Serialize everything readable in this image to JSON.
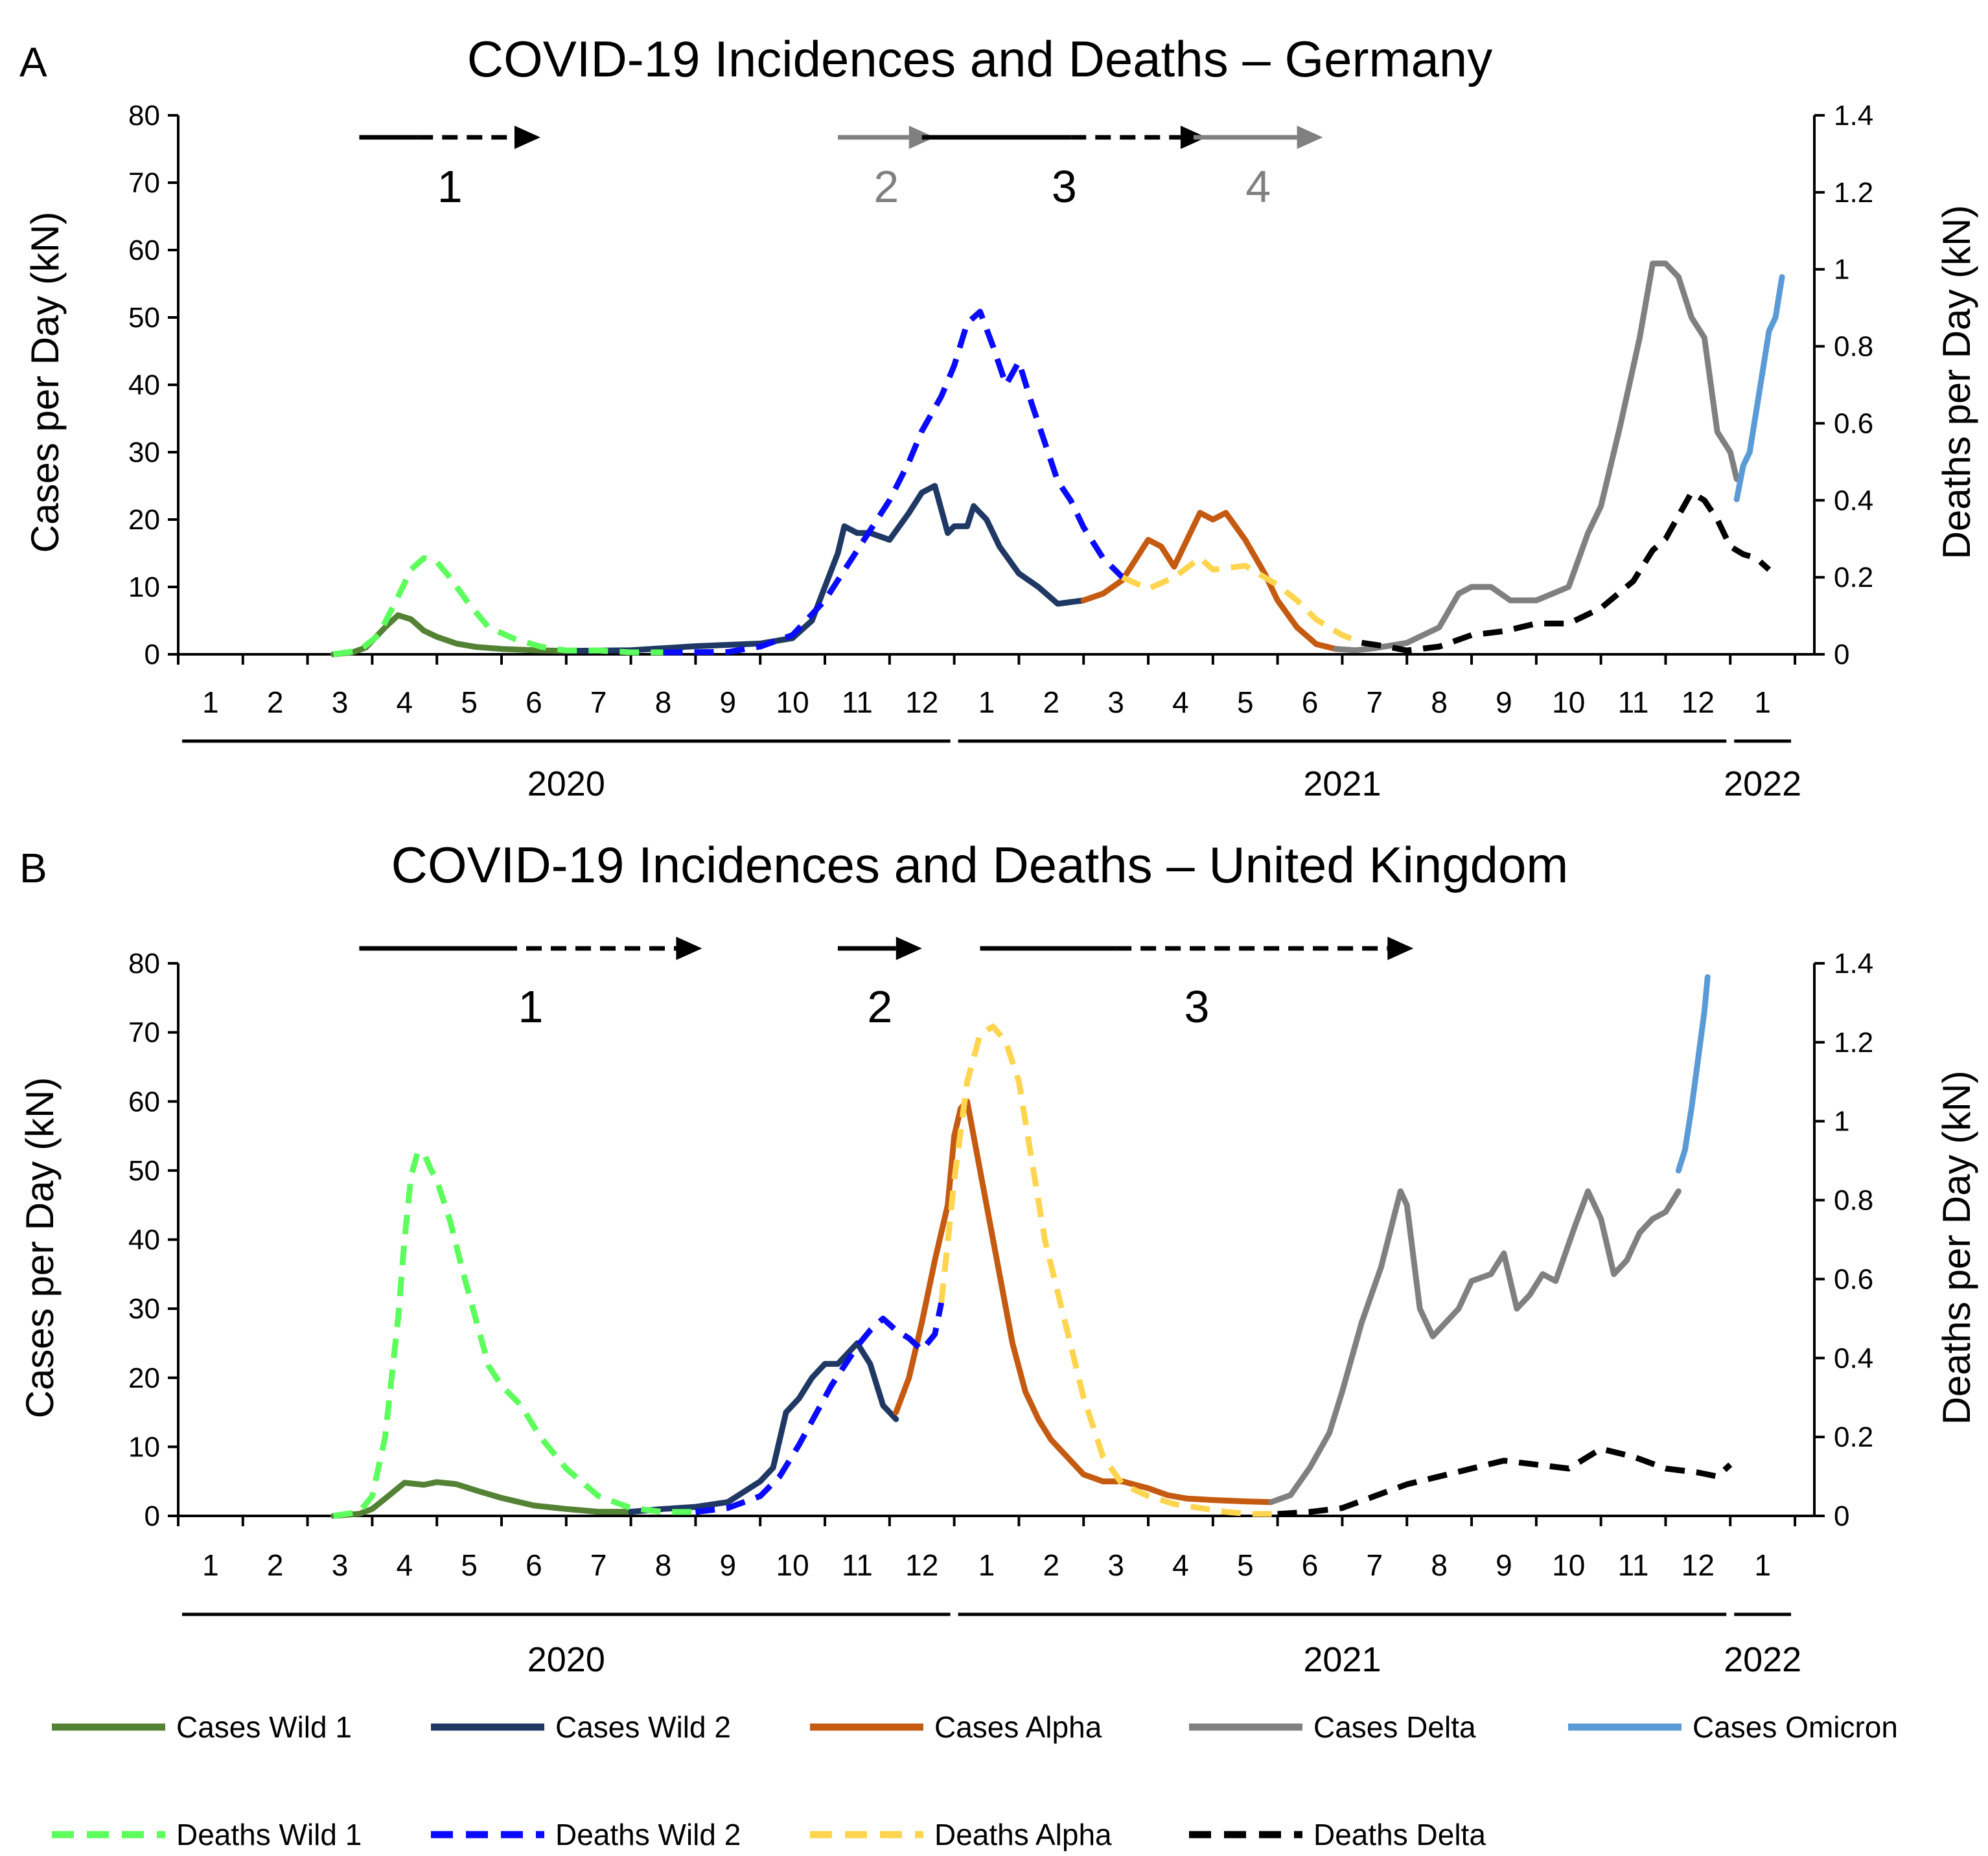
{
  "colors": {
    "cases_wild1": "#548235",
    "cases_wild2": "#1F3864",
    "cases_alpha": "#C55A11",
    "cases_delta": "#808080",
    "cases_omicron": "#5B9BD5",
    "deaths_wild1": "#5CFF5C",
    "deaths_wild2": "#0A0AFF",
    "deaths_alpha": "#FFD54F",
    "deaths_delta": "#000000",
    "phase_black": "#000000",
    "phase_grey": "#808080"
  },
  "legend": [
    {
      "key": "cases_wild1",
      "label": "Cases Wild 1",
      "dashed": false
    },
    {
      "key": "cases_wild2",
      "label": "Cases Wild 2",
      "dashed": false
    },
    {
      "key": "cases_alpha",
      "label": "Cases Alpha",
      "dashed": false
    },
    {
      "key": "cases_delta",
      "label": "Cases Delta",
      "dashed": false
    },
    {
      "key": "cases_omicron",
      "label": "Cases Omicron",
      "dashed": false
    },
    {
      "key": "deaths_wild1",
      "label": "Deaths Wild 1",
      "dashed": true
    },
    {
      "key": "deaths_wild2",
      "label": "Deaths Wild 2",
      "dashed": true
    },
    {
      "key": "deaths_alpha",
      "label": "Deaths Alpha",
      "dashed": true
    },
    {
      "key": "deaths_delta",
      "label": "Deaths Delta",
      "dashed": true
    }
  ],
  "chart_data": [
    {
      "panel": "A",
      "type": "line",
      "title": "COVID-19 Incidences and Deaths – Germany",
      "ylabel": "Cases per Day (kN)",
      "y2label": "Deaths per Day (kN)",
      "ylim": [
        0,
        80
      ],
      "y2lim": [
        0,
        1.4
      ],
      "yticks": [
        "0",
        "10",
        "20",
        "30",
        "40",
        "50",
        "60",
        "70",
        "80"
      ],
      "y2ticks": [
        "0",
        "0.2",
        "0.4",
        "0.6",
        "0.8",
        "1",
        "1.2",
        "1.4"
      ],
      "x_unit": "months since 2020-01-01",
      "xlim": [
        0,
        25
      ],
      "month_labels": [
        "1",
        "2",
        "3",
        "4",
        "5",
        "6",
        "7",
        "8",
        "9",
        "10",
        "11",
        "12",
        "1",
        "2",
        "3",
        "4",
        "5",
        "6",
        "7",
        "8",
        "9",
        "10",
        "11",
        "12",
        "1"
      ],
      "years": [
        {
          "label": "2020",
          "start": 0,
          "end": 12
        },
        {
          "label": "2021",
          "start": 12,
          "end": 24
        },
        {
          "label": "2022",
          "start": 24,
          "end": 25
        }
      ],
      "phases": [
        {
          "label": "1",
          "start": 2.8,
          "mid": 3.7,
          "end": 5.2,
          "color": "phase_black"
        },
        {
          "label": "2",
          "start": 10.2,
          "mid": 11.3,
          "end": 11.3,
          "color": "phase_grey"
        },
        {
          "label": "3",
          "start": 11.5,
          "mid": 13.8,
          "end": 15.5,
          "color": "phase_black"
        },
        {
          "label": "4",
          "start": 15.7,
          "mid": 17.3,
          "end": 17.3,
          "color": "phase_grey"
        }
      ],
      "series": [
        {
          "name": "Cases Wild 1",
          "key": "cases_wild1",
          "axis": "left",
          "dashed": false,
          "x": [
            2.4,
            2.7,
            2.9,
            3.0,
            3.2,
            3.4,
            3.6,
            3.8,
            4.0,
            4.3,
            4.6,
            5.0,
            5.5,
            6.0
          ],
          "y": [
            0,
            0.3,
            1,
            2,
            4,
            5.8,
            5.2,
            3.5,
            2.6,
            1.6,
            1.1,
            0.8,
            0.6,
            0.5
          ]
        },
        {
          "name": "Cases Wild 2",
          "key": "cases_wild2",
          "axis": "left",
          "dashed": false,
          "x": [
            6.0,
            7.0,
            8.0,
            9.0,
            9.5,
            9.8,
            10.0,
            10.2,
            10.3,
            10.5,
            10.7,
            11.0,
            11.3,
            11.5,
            11.7,
            11.9,
            12.0,
            12.2,
            12.3,
            12.5,
            12.7,
            13.0,
            13.3,
            13.6,
            14.0
          ],
          "y": [
            0.5,
            0.6,
            1.2,
            1.6,
            2.4,
            5,
            10,
            15,
            19,
            18,
            18,
            17,
            21,
            24,
            25,
            18,
            19,
            19,
            22,
            20,
            16,
            12,
            10,
            7.5,
            8
          ]
        },
        {
          "name": "Cases Alpha",
          "key": "cases_alpha",
          "axis": "left",
          "dashed": false,
          "x": [
            14.0,
            14.3,
            14.6,
            14.8,
            15.0,
            15.2,
            15.4,
            15.6,
            15.8,
            16.0,
            16.2,
            16.5,
            16.8,
            17.0,
            17.3,
            17.6,
            17.9
          ],
          "y": [
            8,
            9,
            11,
            14,
            17,
            16,
            13,
            17,
            21,
            20,
            21,
            17,
            12,
            8,
            4,
            1.5,
            0.8
          ]
        },
        {
          "name": "Cases Delta",
          "key": "cases_delta",
          "axis": "left",
          "dashed": false,
          "x": [
            17.9,
            18.2,
            18.5,
            19.0,
            19.5,
            19.8,
            20.0,
            20.3,
            20.6,
            21.0,
            21.5,
            21.8,
            22.0,
            22.3,
            22.6,
            22.8,
            23.0,
            23.2,
            23.4,
            23.6,
            23.8,
            24.0,
            24.1
          ],
          "y": [
            0.8,
            0.6,
            0.9,
            1.7,
            4,
            9,
            10,
            10,
            8,
            8,
            10,
            18,
            22,
            34,
            47,
            58,
            58,
            56,
            50,
            47,
            33,
            30,
            26
          ]
        },
        {
          "name": "Cases Omicron",
          "key": "cases_omicron",
          "axis": "left",
          "dashed": false,
          "x": [
            24.1,
            24.2,
            24.3,
            24.4,
            24.5,
            24.6,
            24.7,
            24.8
          ],
          "y": [
            23,
            28,
            30,
            36,
            42,
            48,
            50,
            56
          ]
        },
        {
          "name": "Deaths Wild 1",
          "key": "deaths_wild1",
          "axis": "right",
          "dashed": true,
          "x": [
            2.4,
            2.8,
            3.1,
            3.4,
            3.6,
            3.8,
            4.0,
            4.2,
            4.5,
            4.8,
            5.2,
            5.6,
            6.0,
            6.5,
            7.0,
            7.5
          ],
          "y": [
            0,
            0.01,
            0.05,
            0.15,
            0.22,
            0.25,
            0.24,
            0.2,
            0.13,
            0.07,
            0.04,
            0.02,
            0.01,
            0.01,
            0.005,
            0.005
          ]
        },
        {
          "name": "Deaths Wild 2",
          "key": "deaths_wild2",
          "axis": "right",
          "dashed": true,
          "x": [
            7.5,
            8.5,
            9.0,
            9.5,
            10.0,
            10.5,
            11.0,
            11.3,
            11.5,
            11.8,
            12.0,
            12.2,
            12.4,
            12.6,
            12.8,
            13.0,
            13.2,
            13.4,
            13.6,
            13.8,
            14.0,
            14.3,
            14.6
          ],
          "y": [
            0.005,
            0.006,
            0.02,
            0.05,
            0.14,
            0.27,
            0.4,
            0.5,
            0.58,
            0.67,
            0.75,
            0.86,
            0.89,
            0.8,
            0.7,
            0.76,
            0.65,
            0.55,
            0.45,
            0.4,
            0.33,
            0.25,
            0.2
          ]
        },
        {
          "name": "Deaths Alpha",
          "key": "deaths_alpha",
          "axis": "right",
          "dashed": true,
          "x": [
            14.6,
            15.0,
            15.4,
            15.8,
            16.0,
            16.5,
            17.0,
            17.3,
            17.6,
            18.0,
            18.3
          ],
          "y": [
            0.2,
            0.17,
            0.2,
            0.25,
            0.22,
            0.23,
            0.18,
            0.14,
            0.09,
            0.05,
            0.03
          ]
        },
        {
          "name": "Deaths Delta",
          "key": "deaths_delta",
          "axis": "right",
          "dashed": true,
          "x": [
            18.3,
            18.7,
            19.0,
            19.5,
            20.0,
            20.5,
            21.0,
            21.5,
            22.0,
            22.5,
            22.8,
            23.0,
            23.2,
            23.4,
            23.6,
            23.8,
            24.0,
            24.2,
            24.4,
            24.6
          ],
          "y": [
            0.03,
            0.02,
            0.01,
            0.02,
            0.05,
            0.06,
            0.08,
            0.08,
            0.12,
            0.19,
            0.27,
            0.3,
            0.36,
            0.42,
            0.4,
            0.35,
            0.28,
            0.26,
            0.25,
            0.22
          ]
        }
      ]
    },
    {
      "panel": "B",
      "type": "line",
      "title": "COVID-19 Incidences and Deaths – United Kingdom",
      "ylabel": "Cases per Day (kN)",
      "y2label": "Deaths per Day (kN)",
      "ylim": [
        0,
        80
      ],
      "y2lim": [
        0,
        1.4
      ],
      "yticks": [
        "0",
        "10",
        "20",
        "30",
        "40",
        "50",
        "60",
        "70",
        "80"
      ],
      "y2ticks": [
        "0",
        "0.2",
        "0.4",
        "0.6",
        "0.8",
        "1",
        "1.2",
        "1.4"
      ],
      "x_unit": "months since 2020-01-01",
      "xlim": [
        0,
        25
      ],
      "month_labels": [
        "1",
        "2",
        "3",
        "4",
        "5",
        "6",
        "7",
        "8",
        "9",
        "10",
        "11",
        "12",
        "1",
        "2",
        "3",
        "4",
        "5",
        "6",
        "7",
        "8",
        "9",
        "10",
        "11",
        "12",
        "1"
      ],
      "years": [
        {
          "label": "2020",
          "start": 0,
          "end": 12
        },
        {
          "label": "2021",
          "start": 12,
          "end": 24
        },
        {
          "label": "2022",
          "start": 24,
          "end": 25
        }
      ],
      "phases": [
        {
          "label": "1",
          "start": 2.8,
          "mid": 5.0,
          "end": 7.7,
          "color": "phase_black"
        },
        {
          "label": "2",
          "start": 10.2,
          "mid": 11.1,
          "end": 11.1,
          "color": "phase_black"
        },
        {
          "label": "3",
          "start": 12.4,
          "mid": 14.5,
          "end": 18.7,
          "color": "phase_black"
        }
      ],
      "series": [
        {
          "name": "Cases Wild 1",
          "key": "cases_wild1",
          "axis": "left",
          "dashed": false,
          "x": [
            2.4,
            2.8,
            3.0,
            3.2,
            3.5,
            3.8,
            4.0,
            4.3,
            4.6,
            5.0,
            5.5,
            6.0,
            6.5,
            7.0
          ],
          "y": [
            0,
            0.3,
            1,
            2.5,
            4.8,
            4.5,
            4.9,
            4.6,
            3.7,
            2.6,
            1.5,
            1,
            0.6,
            0.6
          ]
        },
        {
          "name": "Cases Wild 2",
          "key": "cases_wild2",
          "axis": "left",
          "dashed": false,
          "x": [
            7.0,
            7.5,
            8.0,
            8.5,
            9.0,
            9.2,
            9.4,
            9.6,
            9.8,
            10.0,
            10.2,
            10.5,
            10.7,
            10.9,
            11.1
          ],
          "y": [
            0.6,
            1,
            1.3,
            2,
            5,
            7,
            15,
            17,
            20,
            22,
            22,
            25,
            22,
            16,
            14
          ]
        },
        {
          "name": "Cases Alpha",
          "key": "cases_alpha",
          "axis": "left",
          "dashed": false,
          "x": [
            11.1,
            11.3,
            11.5,
            11.7,
            11.9,
            12.0,
            12.1,
            12.2,
            12.3,
            12.5,
            12.7,
            12.9,
            13.1,
            13.3,
            13.5,
            13.8,
            14.0,
            14.3,
            14.6,
            15.0,
            15.3,
            15.6,
            16.0,
            16.5,
            16.9
          ],
          "y": [
            15,
            20,
            28,
            37,
            45,
            55,
            59,
            60,
            55,
            45,
            35,
            25,
            18,
            14,
            11,
            8,
            6,
            5,
            5,
            4,
            3,
            2.5,
            2.3,
            2.1,
            2
          ]
        },
        {
          "name": "Cases Delta",
          "key": "cases_delta",
          "axis": "left",
          "dashed": false,
          "x": [
            16.9,
            17.2,
            17.5,
            17.8,
            18.0,
            18.3,
            18.6,
            18.9,
            19.0,
            19.2,
            19.4,
            19.6,
            19.8,
            20.0,
            20.3,
            20.5,
            20.7,
            20.9,
            21.1,
            21.3,
            21.6,
            21.8,
            22.0,
            22.2,
            22.4,
            22.6,
            22.8,
            23.0,
            23.2
          ],
          "y": [
            2,
            3,
            7,
            12,
            18,
            28,
            36,
            47,
            45,
            30,
            26,
            28,
            30,
            34,
            35,
            38,
            30,
            32,
            35,
            34,
            42,
            47,
            43,
            35,
            37,
            41,
            43,
            44,
            47
          ]
        },
        {
          "name": "Cases Omicron",
          "key": "cases_omicron",
          "axis": "left",
          "dashed": false,
          "x": [
            23.2,
            23.3,
            23.4,
            23.5,
            23.6,
            23.65
          ],
          "y": [
            50,
            53,
            59,
            66,
            73,
            78
          ]
        },
        {
          "name": "Deaths Wild 1",
          "key": "deaths_wild1",
          "axis": "right",
          "dashed": true,
          "x": [
            2.4,
            2.8,
            3.0,
            3.2,
            3.4,
            3.5,
            3.6,
            3.7,
            3.8,
            3.9,
            4.0,
            4.2,
            4.4,
            4.6,
            4.8,
            5.0,
            5.3,
            5.6,
            6.0,
            6.5,
            7.0,
            7.5,
            8.0
          ],
          "y": [
            0,
            0.01,
            0.05,
            0.2,
            0.5,
            0.7,
            0.86,
            0.92,
            0.92,
            0.88,
            0.85,
            0.75,
            0.62,
            0.5,
            0.38,
            0.33,
            0.28,
            0.2,
            0.12,
            0.05,
            0.02,
            0.01,
            0.01
          ]
        },
        {
          "name": "Deaths Wild 2",
          "key": "deaths_wild2",
          "axis": "right",
          "dashed": true,
          "x": [
            8.0,
            8.5,
            9.0,
            9.3,
            9.6,
            9.9,
            10.1,
            10.3,
            10.5,
            10.7,
            10.9,
            11.1,
            11.3,
            11.5,
            11.7,
            11.8
          ],
          "y": [
            0.01,
            0.02,
            0.05,
            0.1,
            0.18,
            0.27,
            0.33,
            0.38,
            0.43,
            0.47,
            0.5,
            0.47,
            0.45,
            0.42,
            0.46,
            0.54
          ]
        },
        {
          "name": "Deaths Alpha",
          "key": "deaths_alpha",
          "axis": "right",
          "dashed": true,
          "x": [
            11.8,
            12.0,
            12.2,
            12.4,
            12.6,
            12.8,
            13.0,
            13.2,
            13.4,
            13.7,
            14.0,
            14.3,
            14.6,
            15.0,
            15.4,
            15.8,
            16.2,
            16.6,
            17.0
          ],
          "y": [
            0.54,
            0.85,
            1.1,
            1.22,
            1.24,
            1.2,
            1.1,
            0.9,
            0.7,
            0.5,
            0.3,
            0.15,
            0.08,
            0.05,
            0.03,
            0.02,
            0.01,
            0.005,
            0.005
          ]
        },
        {
          "name": "Deaths Delta",
          "key": "deaths_delta",
          "axis": "right",
          "dashed": true,
          "x": [
            17.0,
            17.5,
            18.0,
            18.5,
            19.0,
            19.5,
            20.0,
            20.5,
            21.0,
            21.5,
            22.0,
            22.5,
            23.0,
            23.5,
            23.8,
            24.0
          ],
          "y": [
            0.005,
            0.01,
            0.02,
            0.05,
            0.08,
            0.1,
            0.12,
            0.14,
            0.13,
            0.12,
            0.17,
            0.15,
            0.12,
            0.11,
            0.1,
            0.13
          ]
        }
      ]
    }
  ]
}
